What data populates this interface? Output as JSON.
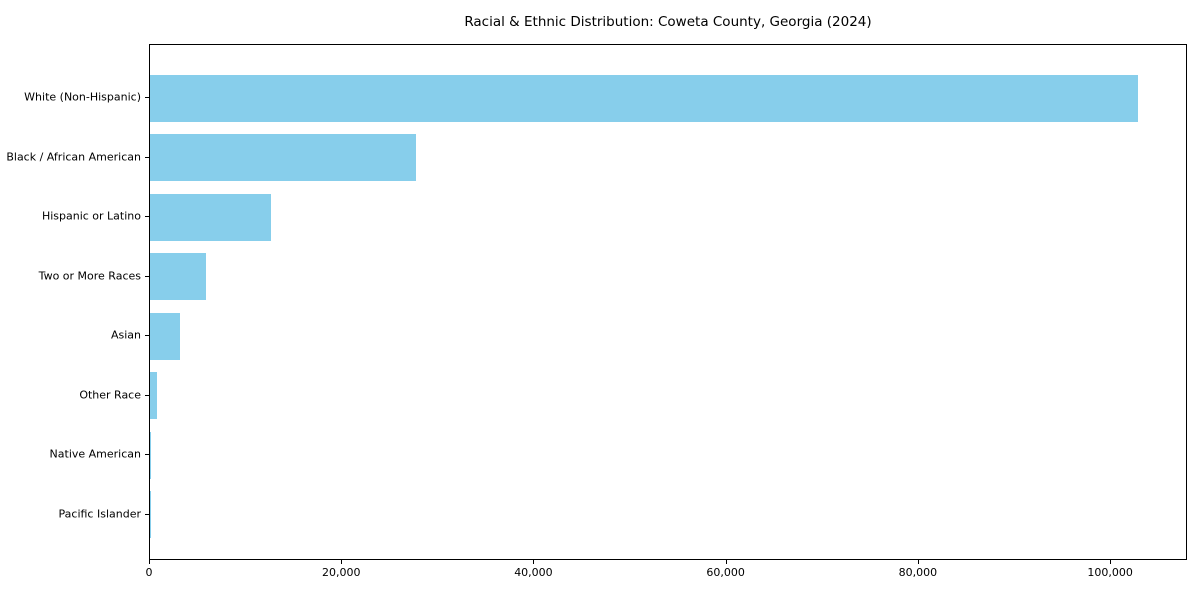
{
  "chart_data": {
    "type": "bar",
    "orientation": "horizontal",
    "title": "Racial & Ethnic Distribution: Coweta County, Georgia (2024)",
    "categories": [
      "White (Non-Hispanic)",
      "Black / African American",
      "Hispanic or Latino",
      "Two or More Races",
      "Asian",
      "Other Race",
      "Native American",
      "Pacific Islander"
    ],
    "values": [
      102800,
      27700,
      12600,
      5800,
      3100,
      730,
      150,
      50
    ],
    "xlabel": "",
    "ylabel": "",
    "xlim": [
      0,
      108000
    ],
    "xticks": [
      0,
      20000,
      40000,
      60000,
      80000,
      100000
    ],
    "xtick_labels": [
      "0",
      "20,000",
      "40,000",
      "60,000",
      "80,000",
      "100,000"
    ],
    "bar_color": "#87CEEB",
    "axis_color": "#000000",
    "background_color": "#ffffff",
    "grid": false,
    "legend": null
  }
}
